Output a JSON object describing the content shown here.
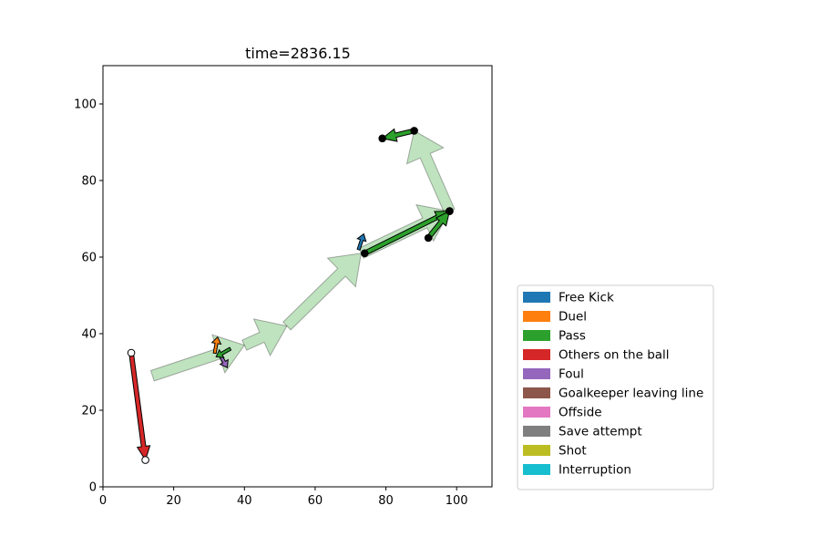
{
  "chart_data": {
    "type": "scatter",
    "title": "time=2836.15",
    "xlabel": "",
    "ylabel": "",
    "xlim": [
      0,
      110
    ],
    "ylim": [
      0,
      110
    ],
    "xticks": [
      0,
      20,
      40,
      60,
      80,
      100
    ],
    "yticks": [
      0,
      20,
      40,
      60,
      80,
      100
    ],
    "grid": false,
    "legend_position": "lower-right",
    "legend": [
      {
        "label": "Free Kick",
        "color": "#1f77b4"
      },
      {
        "label": "Duel",
        "color": "#ff7f0e"
      },
      {
        "label": "Pass",
        "color": "#2ca02c"
      },
      {
        "label": "Others on the ball",
        "color": "#d62728"
      },
      {
        "label": "Foul",
        "color": "#9467bd"
      },
      {
        "label": "Goalkeeper leaving line",
        "color": "#8c564b"
      },
      {
        "label": "Offside",
        "color": "#e377c2"
      },
      {
        "label": "Save attempt",
        "color": "#7f7f7f"
      },
      {
        "label": "Shot",
        "color": "#bcbd22"
      },
      {
        "label": "Interruption",
        "color": "#17becf"
      }
    ],
    "ball_trail": {
      "color": "#2ca02c",
      "points": [
        [
          14,
          29
        ],
        [
          40,
          37
        ],
        [
          52,
          42
        ],
        [
          73,
          61
        ],
        [
          98,
          72
        ],
        [
          88,
          93
        ]
      ]
    },
    "event_arrows": [
      {
        "type": "Others on the ball",
        "color": "#d62728",
        "start": [
          8,
          35
        ],
        "end": [
          12,
          7
        ],
        "marker": "open"
      },
      {
        "type": "Pass",
        "color": "#2ca02c",
        "start": [
          74,
          61
        ],
        "end": [
          98,
          72
        ],
        "marker": "filled"
      },
      {
        "type": "Pass",
        "color": "#2ca02c",
        "start": [
          92,
          65
        ],
        "end": [
          98,
          72
        ],
        "marker": "filled"
      },
      {
        "type": "Pass",
        "color": "#2ca02c",
        "start": [
          88,
          93
        ],
        "end": [
          79,
          91
        ],
        "marker": "filled"
      }
    ],
    "event_markers": [
      {
        "type": "Free Kick",
        "color": "#1f77b4",
        "x": 73,
        "y": 64
      },
      {
        "type": "Duel",
        "color": "#ff7f0e",
        "x": 32,
        "y": 37
      },
      {
        "type": "Foul",
        "color": "#9467bd",
        "x": 34,
        "y": 33
      },
      {
        "type": "Pass",
        "color": "#2ca02c",
        "x": 34,
        "y": 35
      }
    ]
  }
}
